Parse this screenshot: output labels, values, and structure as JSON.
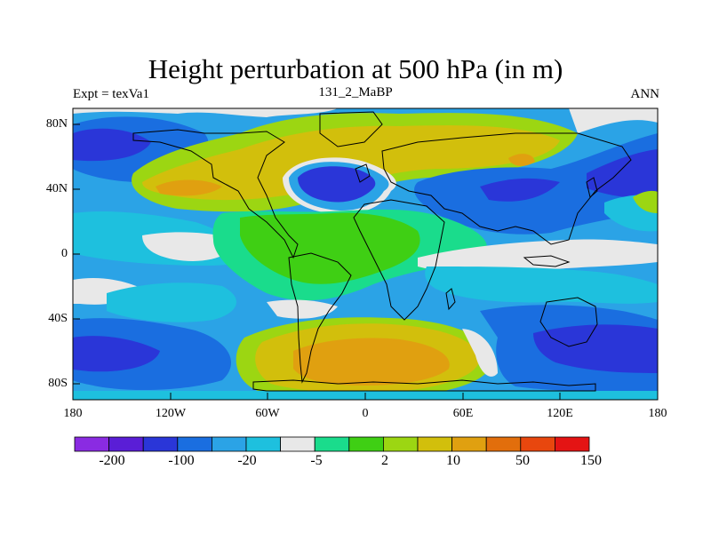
{
  "title": "Height perturbation at 500 hPa (in m)",
  "left_string": "Expt = texVa1",
  "center_string": "131_2_MaBP",
  "right_string": "ANN",
  "lat_labels": [
    "80N",
    "40N",
    "0",
    "40S",
    "80S"
  ],
  "lon_labels": [
    "180",
    "120W",
    "60W",
    "0",
    "60E",
    "120E",
    "180"
  ],
  "colorbar": {
    "colors": [
      "#8a2be2",
      "#5a1ed6",
      "#2a36d8",
      "#1a6ee0",
      "#2ba3e6",
      "#1ec0de",
      "#e8e8e8",
      "#1adc8c",
      "#3fcf14",
      "#9cd612",
      "#d2bf0c",
      "#e0a010",
      "#e26e0c",
      "#e8470e",
      "#e41414"
    ],
    "labels": [
      "-200",
      "-100",
      "-20",
      "-5",
      "2",
      "10",
      "50",
      "150"
    ]
  },
  "map_colors": {
    "neutral": "#e8e8e8",
    "frame": "#000000"
  }
}
